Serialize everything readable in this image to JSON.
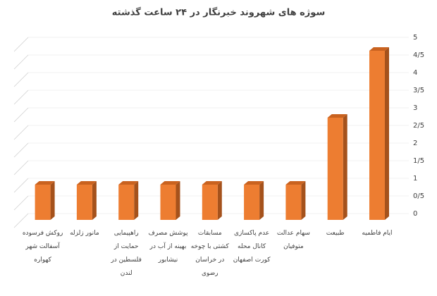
{
  "chart_data": {
    "type": "bar",
    "title": "سوژه های شهروند خبرنگار در ۲۴ ساعت گذشته",
    "categories": [
      "ایام فاطمیه",
      "طبیعت",
      "سهام عدالت متوفیان",
      "عدم پاکسازی کانال محله کورت اصفهان",
      "مسابقات کشتی با چوخه در خراسان رضوی",
      "پوشش مصرف بهینه از آب در نیشابور",
      "راهپیمایی حمایت از فلسطین در لندن",
      "مانور زلزله",
      "روکش فرسوده آسفالت شهر کهواره"
    ],
    "values": [
      4.8,
      2.9,
      1,
      1,
      1,
      1,
      1,
      1,
      1
    ],
    "color": "#ed7d31",
    "ylim": [
      0,
      5
    ],
    "yticks": [
      0,
      {
        "value": 0.5,
        "label": "0/5"
      },
      1,
      {
        "value": 1.5,
        "label": "1/5"
      },
      2,
      {
        "value": 2.5,
        "label": "2/5"
      },
      3,
      {
        "value": 3.5,
        "label": "3/5"
      },
      4,
      {
        "value": 4.5,
        "label": "4/5"
      },
      5
    ],
    "grid": true
  }
}
